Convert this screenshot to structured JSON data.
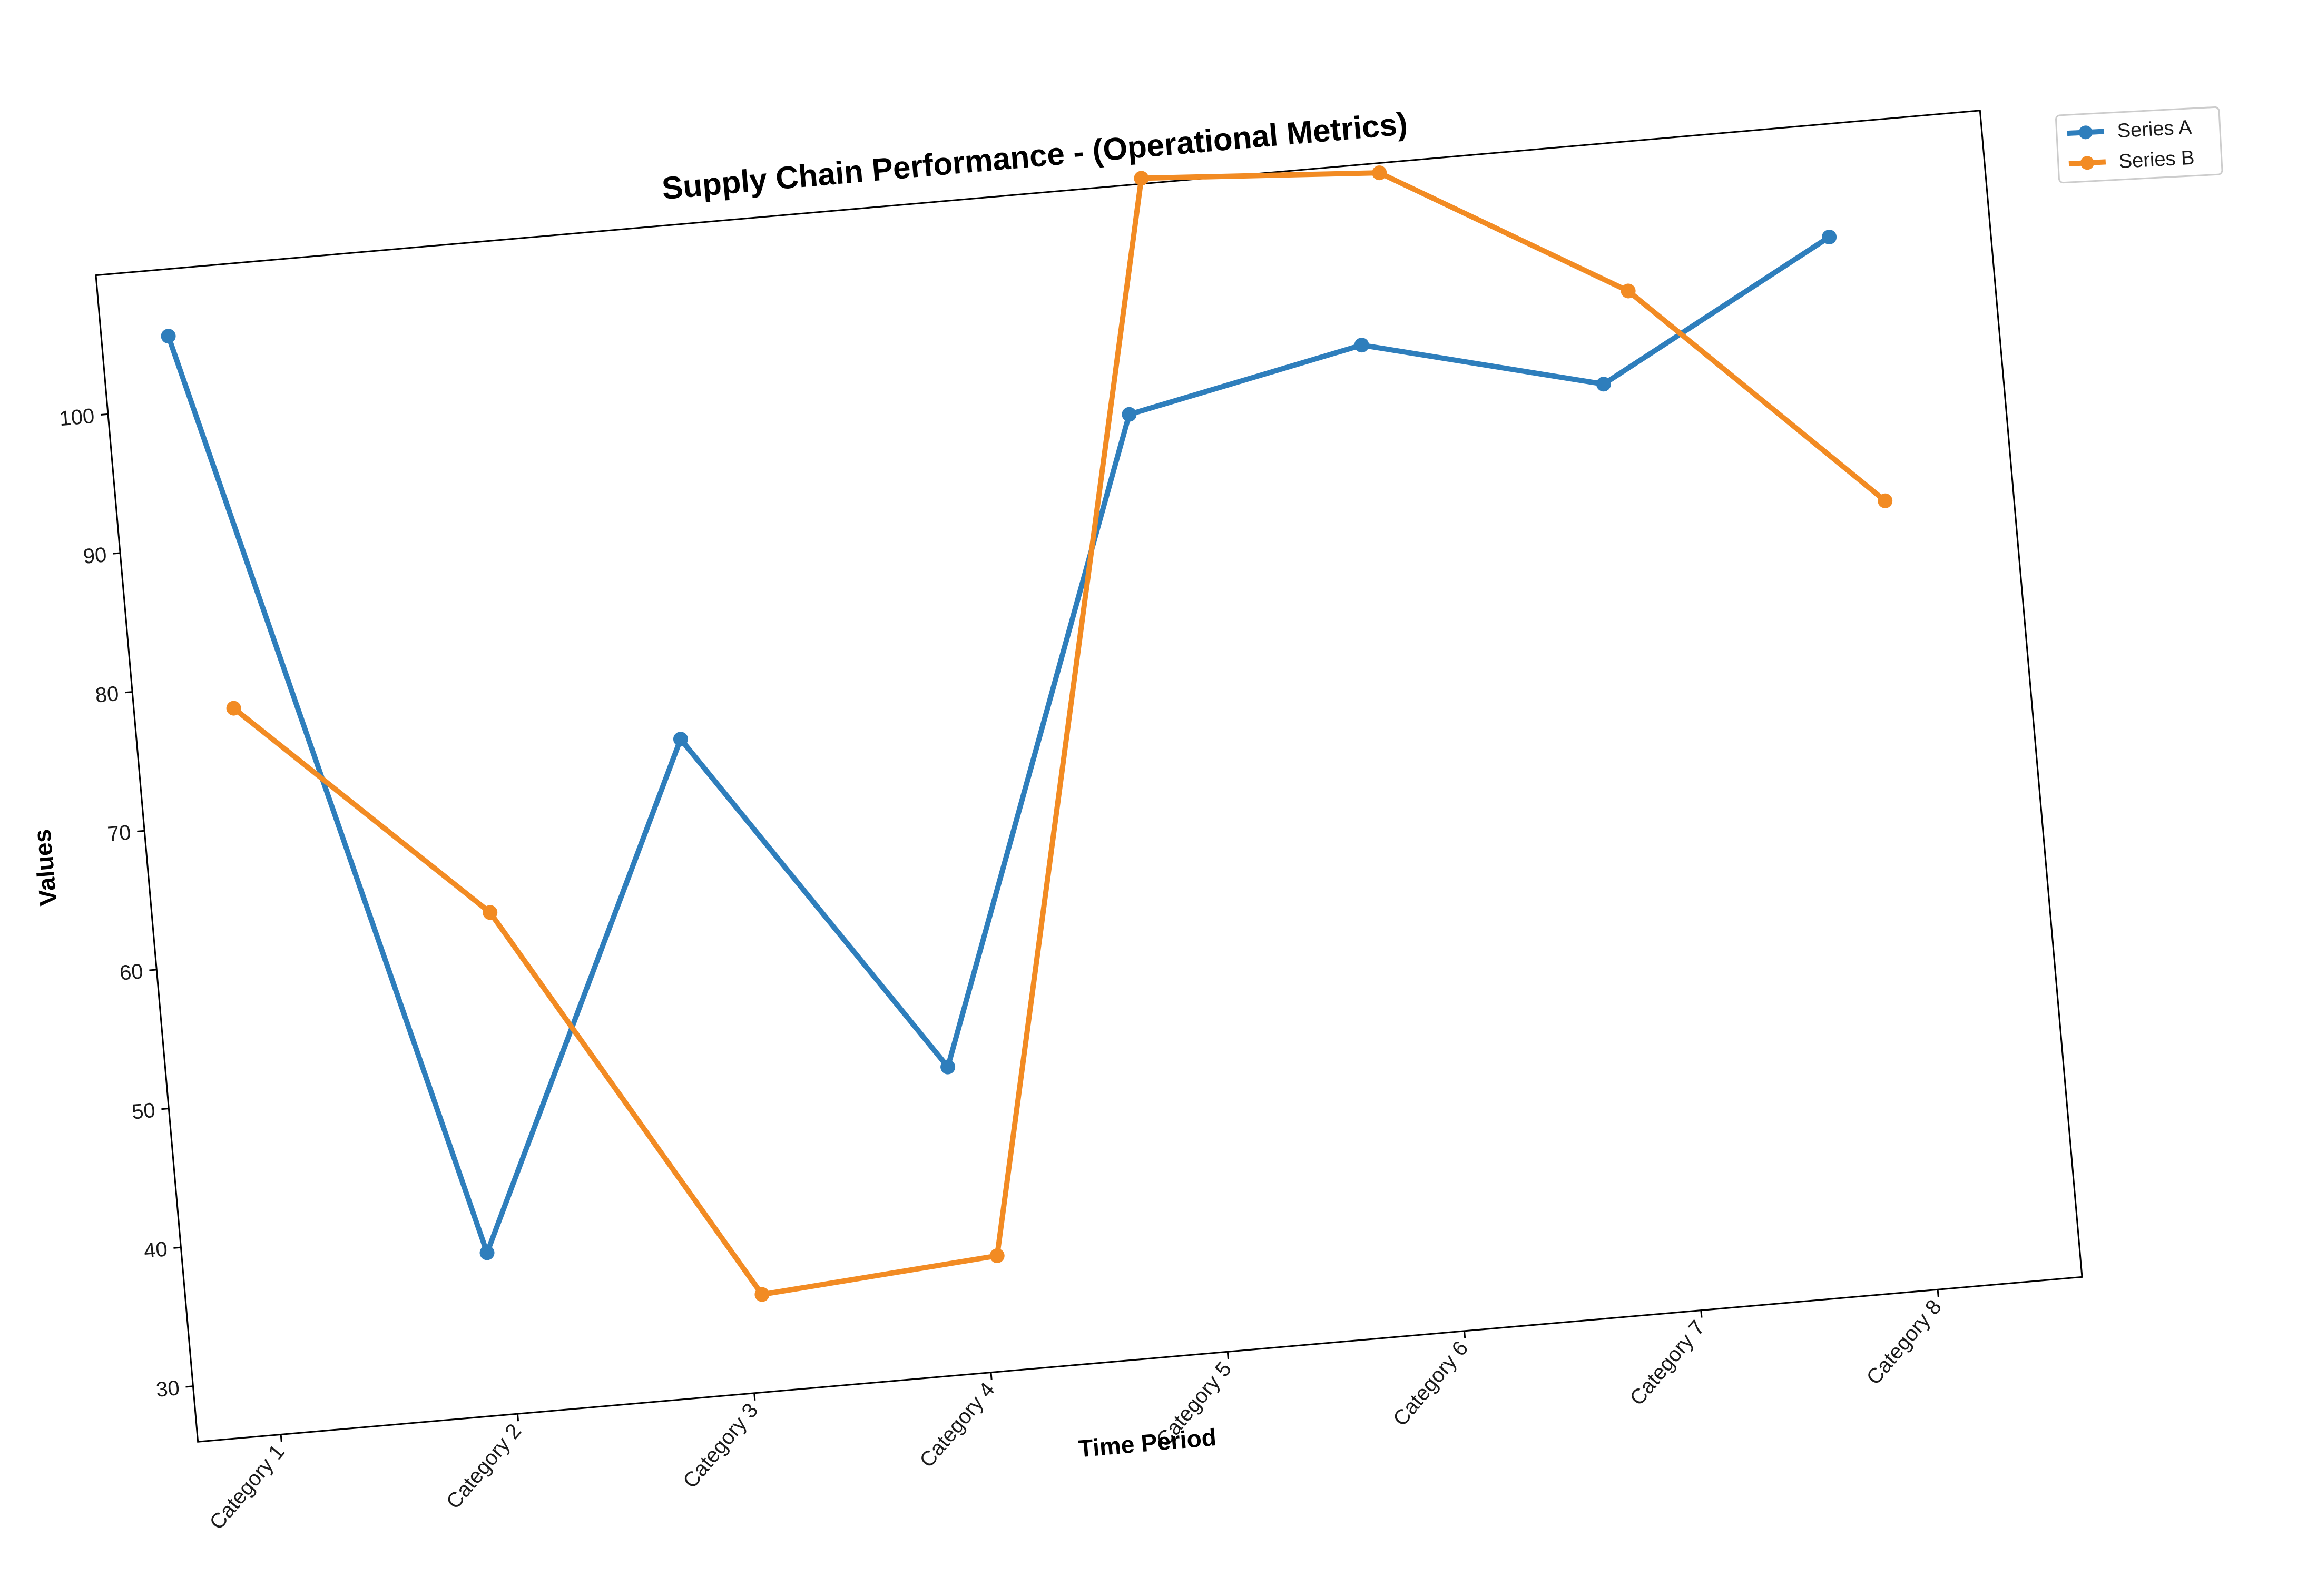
{
  "chart_data": {
    "type": "line",
    "title": "Supply Chain Performance - (Operational Metrics)",
    "xlabel": "Time Period",
    "ylabel": "Values",
    "categories": [
      "Category 1",
      "Category 2",
      "Category 3",
      "Category 4",
      "Category 5",
      "Category 6",
      "Category 7",
      "Category 8"
    ],
    "ylim": [
      26,
      110
    ],
    "yticks": [
      30,
      40,
      50,
      60,
      70,
      80,
      90,
      100
    ],
    "grid": false,
    "legend_position": "upper-right-outside",
    "rotation_degrees": -5,
    "series": [
      {
        "name": "Series A",
        "color": "#2e7ebc",
        "values": [
          105.2,
          37.7,
          73.2,
          48.1,
          93.6,
          97.1,
          92.8,
          101.9
        ]
      },
      {
        "name": "Series B",
        "color": "#f28b23",
        "values": [
          78.2,
          62.0,
          33.0,
          34.3,
          110.4,
          109.3,
          99.3,
          82.7
        ]
      }
    ]
  }
}
